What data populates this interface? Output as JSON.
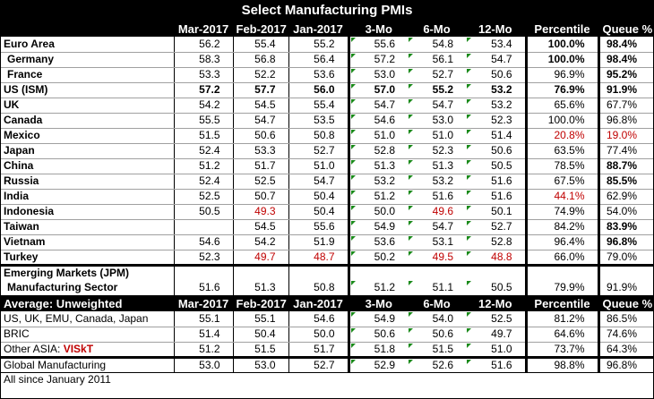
{
  "title": "Select Manufacturing PMIs",
  "headers": [
    "",
    "Mar-2017",
    "Feb-2017",
    "Jan-2017",
    "3-Mo",
    "6-Mo",
    "12-Mo",
    "Percentile",
    "Queue %"
  ],
  "rows": [
    {
      "label": "Euro Area",
      "v": [
        "56.2",
        "55.4",
        "55.2",
        "55.6",
        "54.8",
        "53.4",
        "100.0%",
        "98.4%"
      ]
    },
    {
      "label": "Germany",
      "v": [
        "58.3",
        "56.8",
        "56.4",
        "57.2",
        "56.1",
        "54.7",
        "100.0%",
        "98.4%"
      ]
    },
    {
      "label": "France",
      "v": [
        "53.3",
        "52.2",
        "53.6",
        "53.0",
        "52.7",
        "50.6",
        "96.9%",
        "95.2%"
      ]
    },
    {
      "label": "US (ISM)",
      "v": [
        "57.2",
        "57.7",
        "56.0",
        "57.0",
        "55.2",
        "53.2",
        "76.9%",
        "91.9%"
      ]
    },
    {
      "label": "UK",
      "v": [
        "54.2",
        "54.5",
        "55.4",
        "54.7",
        "54.7",
        "53.2",
        "65.6%",
        "67.7%"
      ]
    },
    {
      "label": "Canada",
      "v": [
        "55.5",
        "54.7",
        "53.5",
        "54.6",
        "53.0",
        "52.3",
        "100.0%",
        "96.8%"
      ]
    },
    {
      "label": "Mexico",
      "v": [
        "51.5",
        "50.6",
        "50.8",
        "51.0",
        "51.0",
        "51.4",
        "20.8%",
        "19.0%"
      ]
    },
    {
      "label": "Japan",
      "v": [
        "52.4",
        "53.3",
        "52.7",
        "52.8",
        "52.3",
        "50.6",
        "63.5%",
        "77.4%"
      ]
    },
    {
      "label": "China",
      "v": [
        "51.2",
        "51.7",
        "51.0",
        "51.3",
        "51.3",
        "50.5",
        "78.5%",
        "88.7%"
      ]
    },
    {
      "label": "Russia",
      "v": [
        "52.4",
        "52.5",
        "54.7",
        "53.2",
        "53.2",
        "51.6",
        "67.5%",
        "85.5%"
      ]
    },
    {
      "label": "India",
      "v": [
        "52.5",
        "50.7",
        "50.4",
        "51.2",
        "51.6",
        "51.6",
        "44.1%",
        "62.9%"
      ]
    },
    {
      "label": "Indonesia",
      "v": [
        "50.5",
        "49.3",
        "50.4",
        "50.0",
        "49.6",
        "50.1",
        "74.9%",
        "54.0%"
      ]
    },
    {
      "label": "Taiwan",
      "v": [
        "",
        "54.5",
        "55.6",
        "54.9",
        "54.7",
        "52.7",
        "84.2%",
        "83.9%"
      ]
    },
    {
      "label": "Vietnam",
      "v": [
        "54.6",
        "54.2",
        "51.9",
        "53.6",
        "53.1",
        "52.8",
        "96.4%",
        "96.8%"
      ]
    },
    {
      "label": "Turkey",
      "v": [
        "52.3",
        "49.7",
        "48.7",
        "50.2",
        "49.5",
        "48.8",
        "66.0%",
        "79.0%"
      ]
    }
  ],
  "em": {
    "label1": "Emerging Markets (JPM)",
    "label2": "Manufacturing Sector",
    "v": [
      "51.6",
      "51.3",
      "50.8",
      "51.2",
      "51.1",
      "50.5",
      "79.9%",
      "91.9%"
    ]
  },
  "avg_headers": [
    "Average: Unweighted",
    "Mar-2017",
    "Feb-2017",
    "Jan-2017",
    "3-Mo",
    "6-Mo",
    "12-Mo",
    "Percentile",
    "Queue %"
  ],
  "avg_rows": [
    {
      "label": "US, UK, EMU, Canada, Japan",
      "v": [
        "55.1",
        "55.1",
        "54.6",
        "54.9",
        "54.0",
        "52.5",
        "81.2%",
        "86.5%"
      ]
    },
    {
      "label": "BRIC",
      "v": [
        "51.4",
        "50.4",
        "50.0",
        "50.6",
        "50.6",
        "49.7",
        "64.6%",
        "74.6%"
      ]
    },
    {
      "label": "Other ASIA: ",
      "label_red": "VISkT",
      "v": [
        "51.2",
        "51.5",
        "51.7",
        "51.8",
        "51.5",
        "51.0",
        "73.7%",
        "64.3%"
      ]
    }
  ],
  "global": {
    "label": "Global Manufacturing",
    "v": [
      "53.0",
      "53.0",
      "52.7",
      "52.9",
      "52.6",
      "51.6",
      "98.8%",
      "96.8%"
    ]
  },
  "footnote": "All since January 2011",
  "colors": {
    "red": "#c00000",
    "header_bg": "#000000",
    "marker": "#1a8a1a"
  }
}
